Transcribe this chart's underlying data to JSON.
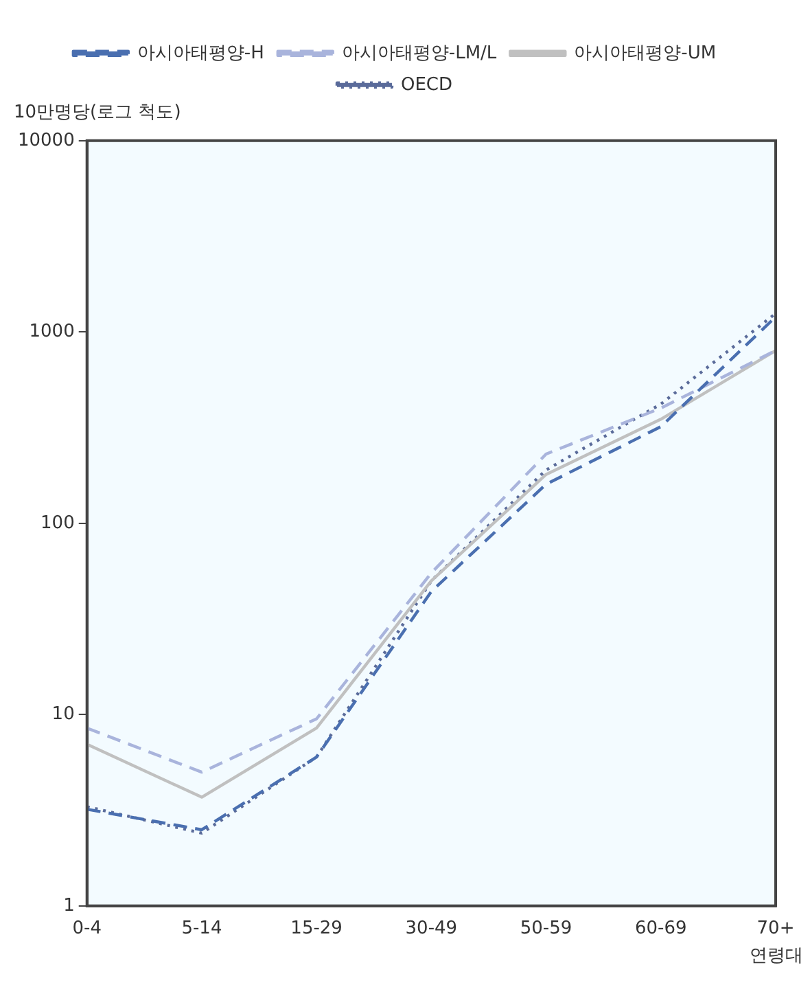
{
  "chart_data": {
    "type": "line",
    "ylabel": "10만명당(로그 척도)",
    "xlabel": "연령대",
    "log": "y",
    "grid": false,
    "legend": "top",
    "marker": "none",
    "categories": [
      "0-4",
      "5-14",
      "15-29",
      "30-49",
      "50-59",
      "60-69",
      "70+"
    ],
    "ylim": [
      1,
      10000
    ],
    "yticks": [
      1,
      10,
      100,
      1000,
      10000
    ],
    "series": [
      {
        "name": "아시아태평양-H",
        "color": "#4a6fb0",
        "line_style": "dashed",
        "values": [
          3.2,
          2.5,
          6,
          44,
          160,
          320,
          1200
        ]
      },
      {
        "name": "아시아태평양-LM/L",
        "color": "#a9b4dc",
        "line_style": "dashed",
        "values": [
          8.5,
          5,
          9.5,
          55,
          230,
          400,
          800
        ]
      },
      {
        "name": "아시아태평양-UM",
        "color": "#c0c0c0",
        "line_style": "solid",
        "values": [
          7,
          3.7,
          8.5,
          50,
          180,
          350,
          800
        ]
      },
      {
        "name": "OECD",
        "color": "#5a6b9a",
        "line_style": "dotted",
        "values": [
          3.3,
          2.4,
          6,
          50,
          190,
          420,
          1250
        ]
      }
    ]
  }
}
